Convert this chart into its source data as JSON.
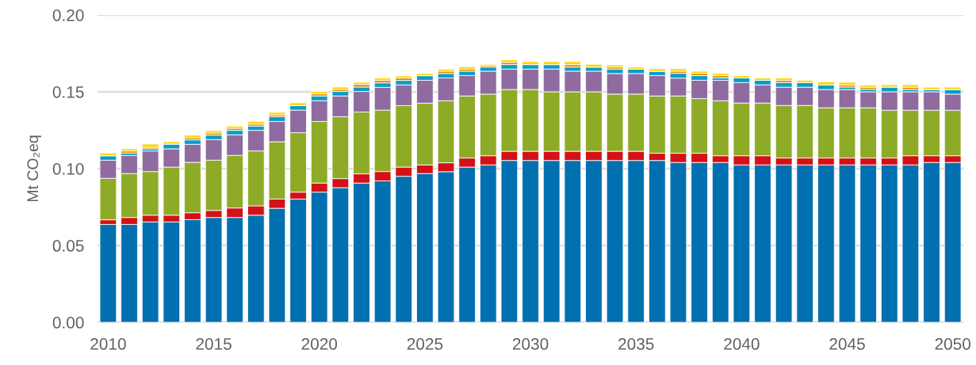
{
  "chart_data": {
    "type": "bar",
    "stacked": true,
    "ylabel": "Mt CO₂eq",
    "x": [
      2010,
      2011,
      2012,
      2013,
      2014,
      2015,
      2016,
      2017,
      2018,
      2019,
      2020,
      2021,
      2022,
      2023,
      2024,
      2025,
      2026,
      2027,
      2028,
      2029,
      2030,
      2031,
      2032,
      2033,
      2034,
      2035,
      2036,
      2037,
      2038,
      2039,
      2040,
      2041,
      2042,
      2043,
      2044,
      2045,
      2046,
      2047,
      2048,
      2049,
      2050
    ],
    "xlim": [
      2009.5,
      2050.5
    ],
    "xticks": [
      2010,
      2015,
      2020,
      2025,
      2030,
      2035,
      2040,
      2045,
      2050
    ],
    "ylim": [
      0,
      0.2
    ],
    "yticks": [
      {
        "value": 0,
        "label": "0.00"
      },
      {
        "value": 0.05,
        "label": "0.05"
      },
      {
        "value": 0.1,
        "label": "0.10"
      },
      {
        "value": 0.15,
        "label": "0.15"
      },
      {
        "value": 0.2,
        "label": "0.20"
      }
    ],
    "grid": "y",
    "series": [
      {
        "color": "#0070b0",
        "values": [
          0.0637,
          0.0637,
          0.0653,
          0.0653,
          0.0668,
          0.0682,
          0.0682,
          0.0697,
          0.0742,
          0.0802,
          0.0847,
          0.0876,
          0.0906,
          0.092,
          0.095,
          0.0968,
          0.098,
          0.101,
          0.1024,
          0.1053,
          0.1053,
          0.1053,
          0.1053,
          0.1053,
          0.1053,
          0.1053,
          0.1053,
          0.104,
          0.104,
          0.104,
          0.1024,
          0.1024,
          0.1024,
          0.1024,
          0.1024,
          0.1024,
          0.1024,
          0.1024,
          0.1024,
          0.104,
          0.104
        ]
      },
      {
        "color": "#d41118",
        "values": [
          0.003,
          0.0045,
          0.0044,
          0.0044,
          0.0045,
          0.0046,
          0.0062,
          0.0061,
          0.006,
          0.0045,
          0.0059,
          0.0059,
          0.006,
          0.0061,
          0.006,
          0.0056,
          0.0058,
          0.0059,
          0.006,
          0.006,
          0.006,
          0.006,
          0.006,
          0.006,
          0.006,
          0.006,
          0.0047,
          0.006,
          0.006,
          0.0044,
          0.006,
          0.006,
          0.0045,
          0.0045,
          0.0045,
          0.0045,
          0.0045,
          0.0045,
          0.006,
          0.0044,
          0.0044
        ]
      },
      {
        "color": "#8eab27",
        "values": [
          0.027,
          0.0286,
          0.0284,
          0.0313,
          0.0328,
          0.0327,
          0.0342,
          0.0357,
          0.0373,
          0.0387,
          0.0401,
          0.0403,
          0.0402,
          0.04,
          0.04,
          0.0402,
          0.0404,
          0.0404,
          0.0401,
          0.0402,
          0.0402,
          0.0387,
          0.0387,
          0.0387,
          0.0372,
          0.0372,
          0.0373,
          0.0373,
          0.0356,
          0.0358,
          0.0343,
          0.0343,
          0.0342,
          0.0342,
          0.0327,
          0.0327,
          0.0327,
          0.0311,
          0.0296,
          0.0296,
          0.0296
        ]
      },
      {
        "color": "#8f6ba0",
        "values": [
          0.0118,
          0.0118,
          0.0134,
          0.0119,
          0.0117,
          0.0134,
          0.0134,
          0.0134,
          0.0132,
          0.0147,
          0.0135,
          0.0135,
          0.0134,
          0.0148,
          0.0135,
          0.0149,
          0.0148,
          0.0133,
          0.0149,
          0.0133,
          0.0133,
          0.0148,
          0.0134,
          0.0134,
          0.0134,
          0.0134,
          0.0133,
          0.0116,
          0.0119,
          0.0133,
          0.0133,
          0.0118,
          0.0119,
          0.0119,
          0.0119,
          0.0119,
          0.0104,
          0.012,
          0.012,
          0.012,
          0.0105
        ]
      },
      {
        "color": "#0a9cc8",
        "values": [
          0.0029,
          0.0015,
          0.0014,
          0.0031,
          0.0029,
          0.0029,
          0.0029,
          0.0028,
          0.0031,
          0.0029,
          0.0031,
          0.0029,
          0.0029,
          0.0029,
          0.0029,
          0.003,
          0.0029,
          0.0028,
          0.0027,
          0.0029,
          0.0029,
          0.0029,
          0.0027,
          0.0027,
          0.0029,
          0.0029,
          0.0028,
          0.0031,
          0.003,
          0.0015,
          0.003,
          0.003,
          0.003,
          0.003,
          0.003,
          0.0016,
          0.0016,
          0.0031,
          0.0015,
          0.0015,
          0.003
        ]
      },
      {
        "color": "#e0900c",
        "values": [
          0,
          0.0014,
          0.001,
          0,
          0.0014,
          0.0014,
          0.0014,
          0.0013,
          0.0012,
          0,
          0.0014,
          0.0013,
          0.0017,
          0.0017,
          0.0016,
          0,
          0.0015,
          0.0014,
          0.001,
          0.0015,
          0,
          0,
          0.0016,
          0,
          0.0013,
          0,
          0,
          0.0014,
          0.0015,
          0.0015,
          0,
          0,
          0.0015,
          0,
          0,
          0.0014,
          0.0014,
          0,
          0.0015,
          0,
          0
        ]
      },
      {
        "color": "#ffd700",
        "values": [
          0.0017,
          0.0014,
          0.0021,
          0.0015,
          0.0017,
          0.0015,
          0.0014,
          0.0017,
          0.0016,
          0.0018,
          0.0015,
          0.0016,
          0.0014,
          0.0015,
          0.0013,
          0.0014,
          0.0014,
          0.0015,
          0.0008,
          0.0016,
          0.0019,
          0.0019,
          0.0019,
          0.0018,
          0.0014,
          0.0013,
          0.0016,
          0.0016,
          0.0014,
          0.0014,
          0.0015,
          0.0015,
          0.0015,
          0.0015,
          0.002,
          0.0017,
          0.0014,
          0.0015,
          0.0016,
          0.0015,
          0.0015
        ]
      }
    ]
  }
}
